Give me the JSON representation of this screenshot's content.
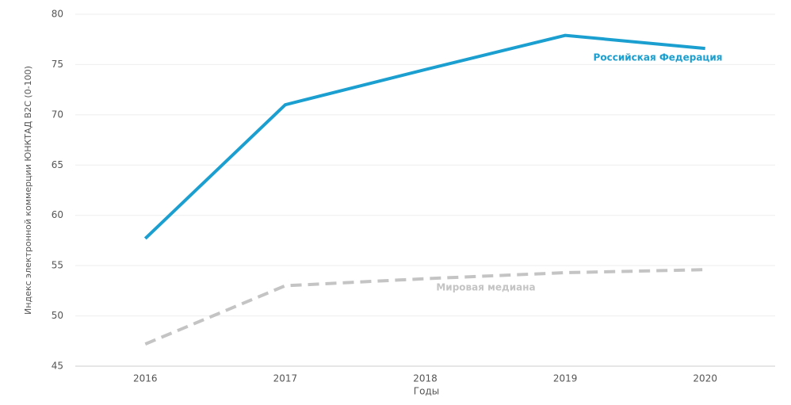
{
  "chart_data": {
    "type": "line",
    "y_label": "Индекс электронной коммерции ЮНКТАД B2C (0-100)",
    "x_label": "Годы",
    "categories": [
      "2016",
      "2017",
      "2018",
      "2019",
      "2020"
    ],
    "series": [
      {
        "name": "Российская Федерация",
        "color": "#1a9fd0",
        "dash": false,
        "values": [
          57.7,
          71,
          74.5,
          77.9,
          76.6
        ]
      },
      {
        "name": "Мировая медиана",
        "color": "#c4c4c4",
        "dash": true,
        "values": [
          47.2,
          53,
          53.7,
          54.3,
          54.6
        ]
      }
    ],
    "ylim": [
      45,
      80
    ],
    "yticks": [
      45,
      50,
      55,
      60,
      65,
      70,
      75,
      80
    ],
    "grid": true
  }
}
